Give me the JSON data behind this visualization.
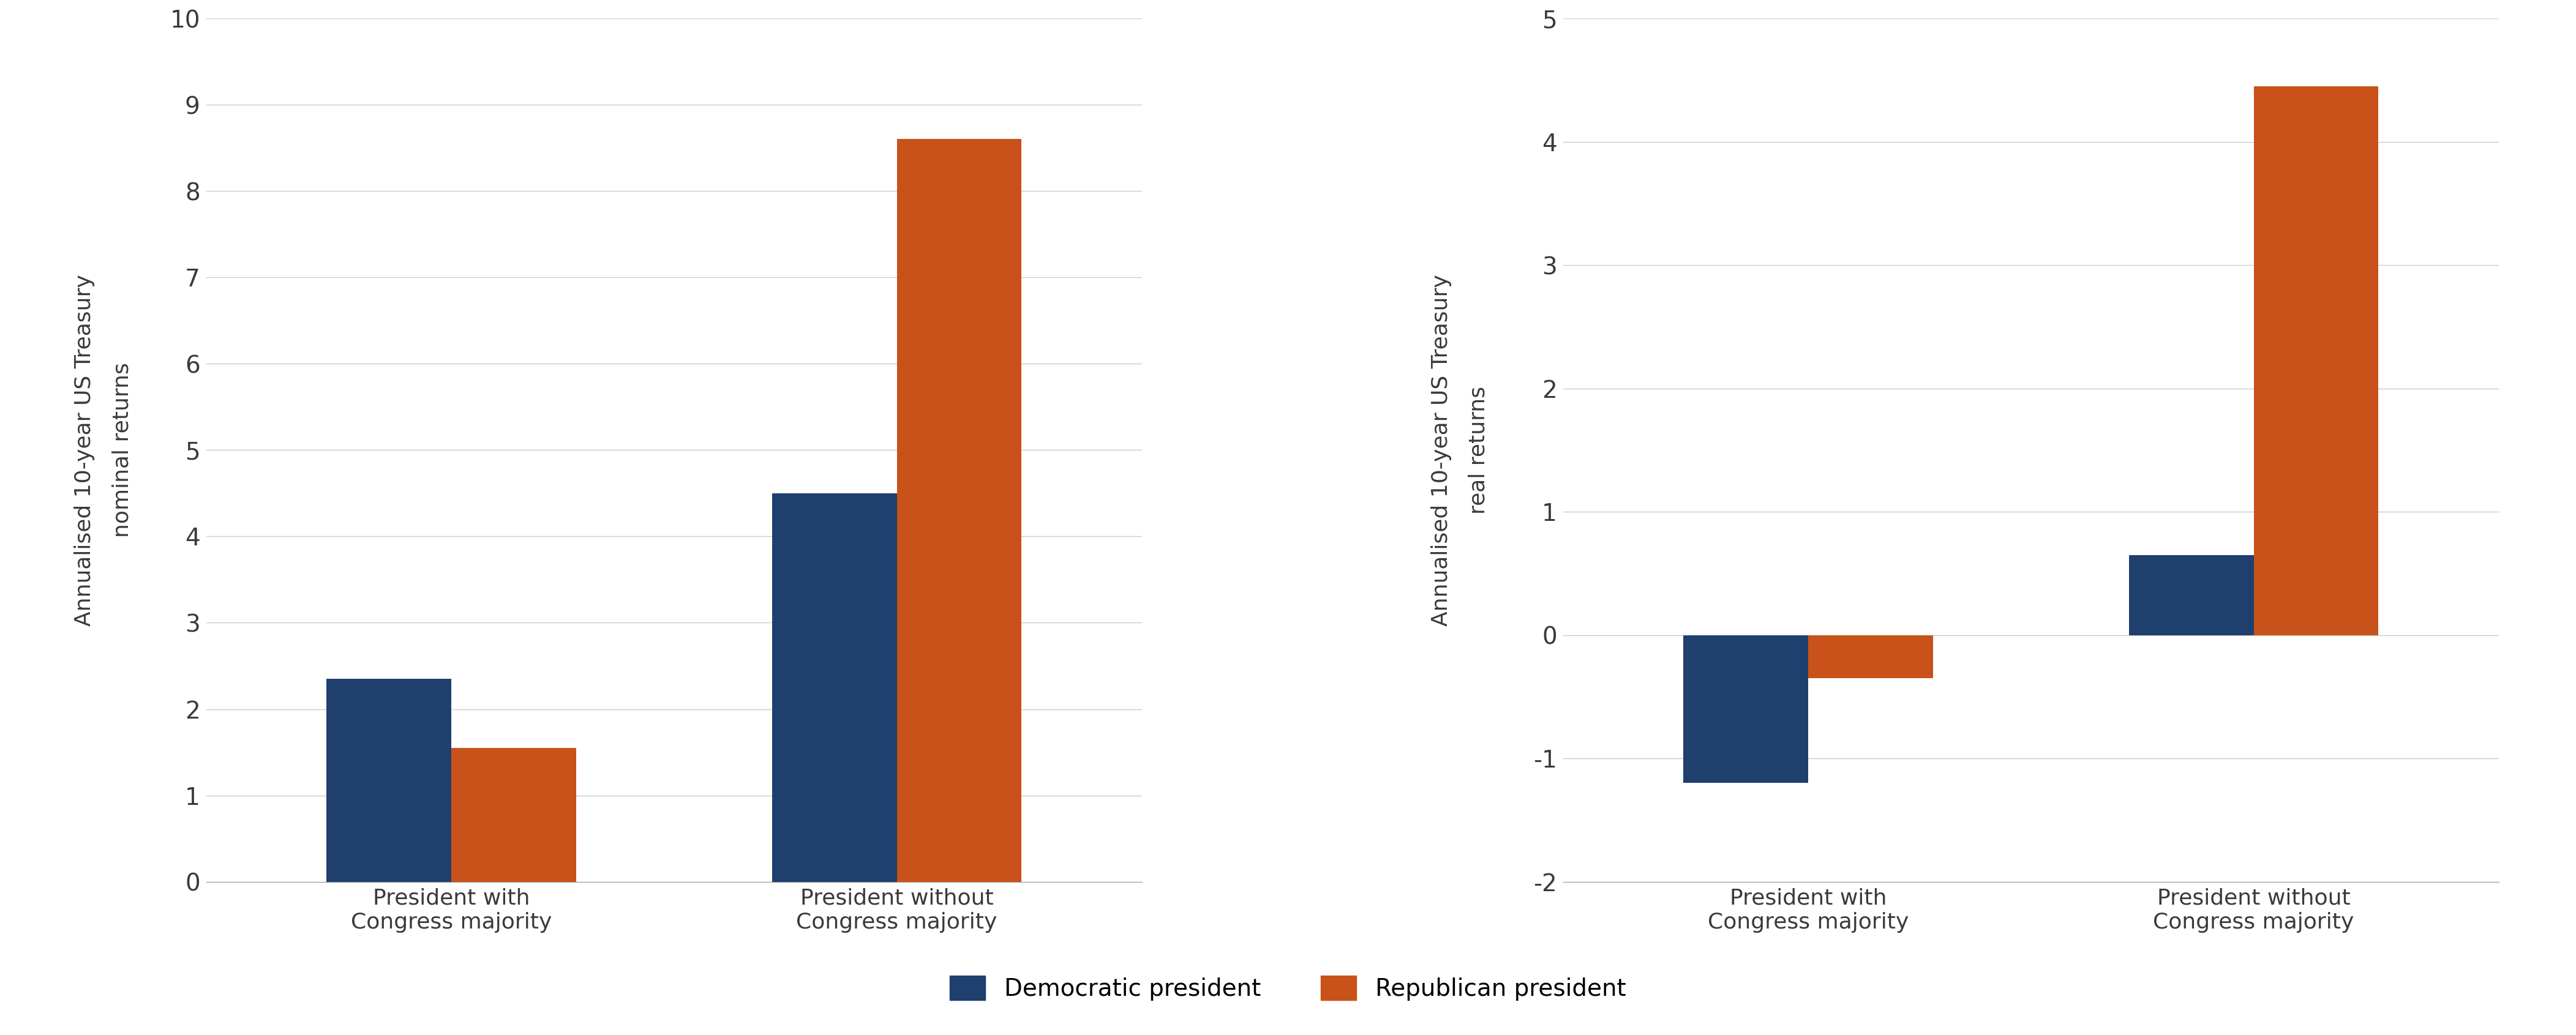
{
  "chart1": {
    "ylabel_line1": "Annualised 10-year US Treasury",
    "ylabel_line2": "nominal returns",
    "categories": [
      "President with\nCongress majority",
      "President without\nCongress majority"
    ],
    "democratic": [
      2.35,
      4.5
    ],
    "republican": [
      1.55,
      8.6
    ],
    "ylim": [
      0,
      10
    ],
    "yticks": [
      0,
      1,
      2,
      3,
      4,
      5,
      6,
      7,
      8,
      9,
      10
    ]
  },
  "chart2": {
    "ylabel_line1": "Annualised 10-year US Treasury",
    "ylabel_line2": "real returns",
    "categories": [
      "President with\nCongress majority",
      "President without\nCongress majority"
    ],
    "democratic": [
      -1.2,
      0.65
    ],
    "republican": [
      -0.35,
      4.45
    ],
    "ylim": [
      -2,
      5
    ],
    "yticks": [
      -2,
      -1,
      0,
      1,
      2,
      3,
      4,
      5
    ]
  },
  "dem_color": "#1f3f6e",
  "rep_color": "#c8521a",
  "background_color": "#ffffff",
  "legend_dem": "Democratic president",
  "legend_rep": "Republican president",
  "bar_width": 0.28,
  "tick_fontsize": 28,
  "ylabel_fontsize": 26,
  "legend_fontsize": 28,
  "xtick_fontsize": 26
}
